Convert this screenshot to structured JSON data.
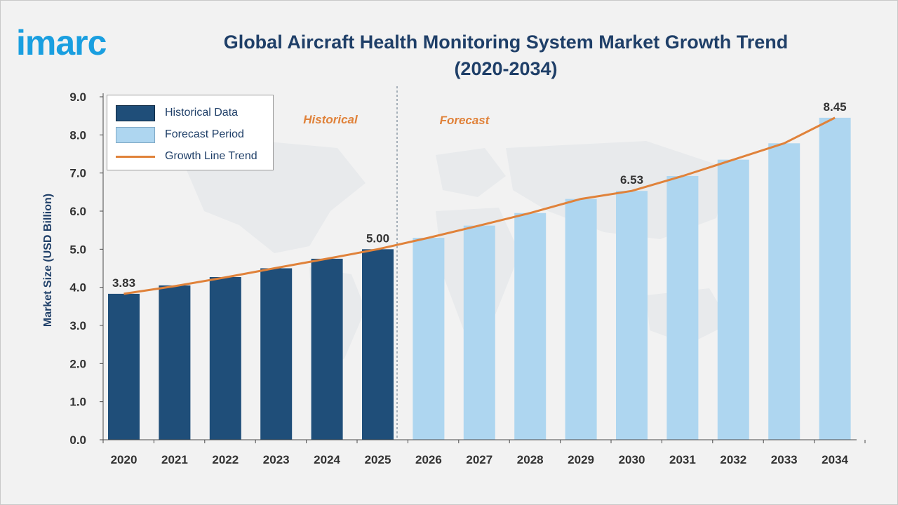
{
  "logo": {
    "text": "imarc",
    "color": "#1a9fe0"
  },
  "header": {
    "title_line1": "Global Aircraft Health Monitoring System Market Growth Trend",
    "title_line2": "(2020-2034)"
  },
  "legend": {
    "historical_label": "Historical Data",
    "forecast_label": "Forecast Period",
    "trend_label": "Growth Line Trend"
  },
  "colors": {
    "historical": "#1f4e79",
    "forecast": "#aed6f0",
    "trend": "#e0823a",
    "annotation": "#e0823a",
    "text": "#1f3f68",
    "map": "#d6dde3"
  },
  "chart_data": {
    "type": "bar",
    "title": "Global Aircraft Health Monitoring System Market Growth Trend (2020-2034)",
    "xlabel": "",
    "ylabel": "Market Size (USD Billion)",
    "ylim": [
      0,
      9
    ],
    "yticks": [
      "0.0",
      "1.0",
      "2.0",
      "3.0",
      "4.0",
      "5.0",
      "6.0",
      "7.0",
      "8.0",
      "9.0"
    ],
    "grid": false,
    "legend_position": "top-left",
    "categories": [
      "2020",
      "2021",
      "2022",
      "2023",
      "2024",
      "2025",
      "2026",
      "2027",
      "2028",
      "2029",
      "2030",
      "2031",
      "2032",
      "2033",
      "2034"
    ],
    "series": [
      {
        "name": "Historical Data",
        "values": [
          3.83,
          4.05,
          4.27,
          4.5,
          4.75,
          5.0,
          null,
          null,
          null,
          null,
          null,
          null,
          null,
          null,
          null
        ]
      },
      {
        "name": "Forecast Period",
        "values": [
          null,
          null,
          null,
          null,
          null,
          null,
          5.3,
          5.62,
          5.95,
          6.32,
          6.53,
          6.92,
          7.35,
          7.78,
          8.45
        ]
      },
      {
        "name": "Growth Line Trend",
        "type": "line",
        "values": [
          3.83,
          4.03,
          4.26,
          4.51,
          4.75,
          5.0,
          5.3,
          5.62,
          5.95,
          6.32,
          6.53,
          6.92,
          7.35,
          7.78,
          8.45
        ]
      }
    ],
    "data_labels": [
      {
        "category": "2020",
        "text": "3.83"
      },
      {
        "category": "2025",
        "text": "5.00"
      },
      {
        "category": "2030",
        "text": "6.53"
      },
      {
        "category": "2034",
        "text": "8.45"
      }
    ],
    "annotations": [
      {
        "text": "Historical",
        "region": "historical"
      },
      {
        "text": "Forecast",
        "region": "forecast"
      }
    ],
    "divider_after": "2025"
  }
}
